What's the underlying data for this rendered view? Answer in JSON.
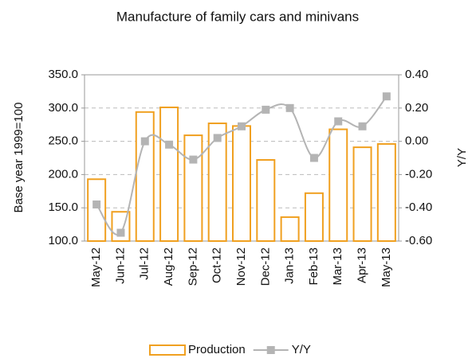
{
  "chart_data": {
    "type": "bar",
    "title": "Manufacture of family cars and minivans",
    "y_label": "Base year 1999=100",
    "y2_label": "Y/Y",
    "categories": [
      "May-12",
      "Jun-12",
      "Jul-12",
      "Aug-12",
      "Sep-12",
      "Oct-12",
      "Nov-12",
      "Dec-12",
      "Jan-13",
      "Feb-13",
      "Mar-13",
      "Apr-13",
      "May-13"
    ],
    "series": [
      {
        "name": "Production",
        "type": "bar",
        "color": "#f0a020",
        "values": [
          193,
          144,
          294,
          301,
          259,
          277,
          273,
          222,
          136,
          172,
          268,
          241,
          246
        ]
      },
      {
        "name": "Y/Y",
        "type": "line",
        "axis": "y2",
        "color": "#b4b4b4",
        "values": [
          -0.38,
          -0.55,
          0.0,
          -0.02,
          -0.11,
          0.02,
          0.09,
          0.19,
          0.2,
          -0.1,
          0.12,
          0.09,
          0.27
        ]
      }
    ],
    "ylim": [
      100,
      350
    ],
    "yticks": [
      {
        "value": 100,
        "label": "100.0"
      },
      {
        "value": 150,
        "label": "150.0"
      },
      {
        "value": 200,
        "label": "200.0"
      },
      {
        "value": 250,
        "label": "250.0"
      },
      {
        "value": 300,
        "label": "300.0"
      },
      {
        "value": 350,
        "label": "350.0"
      }
    ],
    "y2lim": [
      -0.6,
      0.4
    ],
    "y2ticks": [
      {
        "value": -0.6,
        "label": "-0.60"
      },
      {
        "value": -0.4,
        "label": "-0.40"
      },
      {
        "value": -0.2,
        "label": "-0.20"
      },
      {
        "value": 0,
        "label": "0.00"
      },
      {
        "value": 0.2,
        "label": "0.20"
      },
      {
        "value": 0.4,
        "label": "0.40"
      }
    ],
    "grid": true,
    "legend": "bottom"
  }
}
